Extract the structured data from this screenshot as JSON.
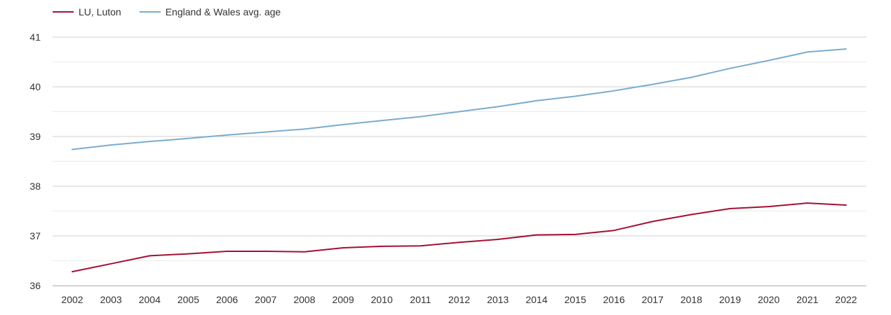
{
  "chart_data": {
    "type": "line",
    "title": "",
    "xlabel": "",
    "ylabel": "",
    "categories": [
      "2002",
      "2003",
      "2004",
      "2005",
      "2006",
      "2007",
      "2008",
      "2009",
      "2010",
      "2011",
      "2012",
      "2013",
      "2014",
      "2015",
      "2016",
      "2017",
      "2018",
      "2019",
      "2020",
      "2021",
      "2022"
    ],
    "series": [
      {
        "name": "LU, Luton",
        "color": "#a50f35",
        "values": [
          36.28,
          36.44,
          36.6,
          36.64,
          36.69,
          36.69,
          36.68,
          36.76,
          36.79,
          36.8,
          36.87,
          36.93,
          37.02,
          37.03,
          37.11,
          37.29,
          37.43,
          37.55,
          37.59,
          37.66,
          37.62
        ]
      },
      {
        "name": "England & Wales avg. age",
        "color": "#7aaccf",
        "values": [
          38.74,
          38.83,
          38.9,
          38.96,
          39.03,
          39.09,
          39.15,
          39.24,
          39.32,
          39.4,
          39.5,
          39.6,
          39.72,
          39.81,
          39.92,
          40.05,
          40.19,
          40.37,
          40.53,
          40.7,
          40.76
        ]
      }
    ],
    "ylim": [
      36,
      41
    ],
    "yticks": [
      "36",
      "37",
      "38",
      "39",
      "40",
      "41"
    ],
    "grid": true,
    "legend": "top-left"
  }
}
